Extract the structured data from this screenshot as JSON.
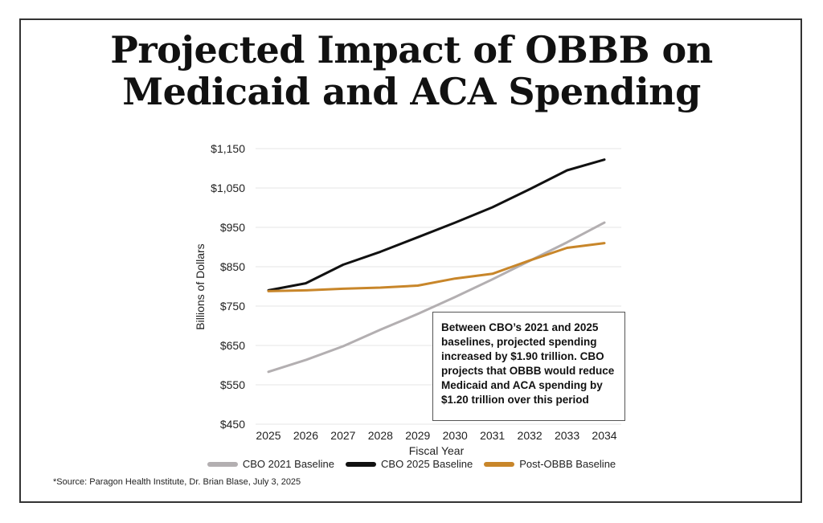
{
  "title": {
    "line1": "Projected Impact of OBBB on",
    "line2": "Medicaid and ACA Spending"
  },
  "annotation": "Between CBO’s 2021 and 2025 baselines, projected spending increased by $1.90 trillion. CBO projects that OBBB would reduce Medicaid and ACA spending by $1.20 trillion over this period",
  "source": "*Source: Paragon Health Institute, Dr. Brian Blase, July 3, 2025",
  "chart_data": {
    "type": "line",
    "title": "Projected Impact of OBBB on Medicaid and ACA Spending",
    "xlabel": "Fiscal Year",
    "ylabel": "Billions of Dollars",
    "x": [
      "2025",
      "2026",
      "2027",
      "2028",
      "2029",
      "2030",
      "2031",
      "2032",
      "2033",
      "2034"
    ],
    "ylim": [
      450,
      1150
    ],
    "yticks": [
      450,
      550,
      650,
      750,
      850,
      950,
      1050,
      1150
    ],
    "ytick_labels": [
      "$450",
      "$550",
      "$650",
      "$750",
      "$850",
      "$950",
      "$1,050",
      "$1,150"
    ],
    "grid": true,
    "legend_position": "bottom",
    "series": [
      {
        "name": "CBO 2021 Baseline",
        "color": "#b3afb1",
        "values": [
          583,
          613,
          648,
          690,
          730,
          773,
          818,
          865,
          912,
          962
        ]
      },
      {
        "name": "CBO 2025 Baseline",
        "color": "#111111",
        "values": [
          790,
          808,
          855,
          888,
          925,
          962,
          1001,
          1047,
          1095,
          1122
        ]
      },
      {
        "name": "Post-OBBB Baseline",
        "color": "#c8862a",
        "values": [
          788,
          790,
          794,
          797,
          802,
          820,
          832,
          866,
          898,
          910
        ]
      }
    ]
  }
}
